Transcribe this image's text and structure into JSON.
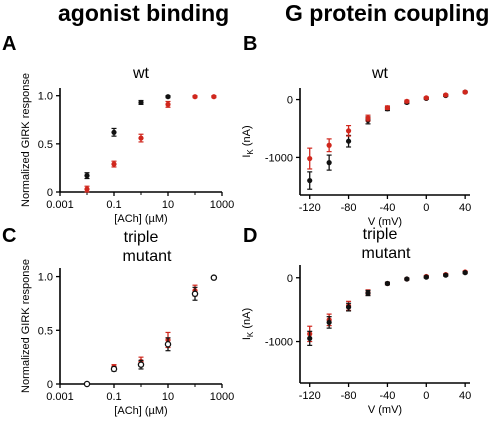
{
  "headings": {
    "left": "agonist binding",
    "right": "G protein coupling"
  },
  "colors": {
    "wt_black": "#111111",
    "mutant_red": "#d0271d",
    "axis": "#000000"
  },
  "chart_data": [
    {
      "panel": "A",
      "type": "scatter",
      "title": "wt",
      "xlabel": "[ACh] (µM)",
      "ylabel": "Normalized GIRK response",
      "xscale": "log",
      "xlim": [
        0.001,
        1000
      ],
      "ylim": [
        0,
        1.08
      ],
      "xticks": [
        {
          "v": 0.001,
          "label": "0.001"
        },
        {
          "v": 0.1,
          "label": "0.1"
        },
        {
          "v": 10,
          "label": "10"
        },
        {
          "v": 1000,
          "label": "1000"
        }
      ],
      "yticks": [
        {
          "v": 0,
          "label": "0"
        },
        {
          "v": 0.5,
          "label": "0.5"
        },
        {
          "v": 1,
          "label": "1.0"
        }
      ],
      "series": [
        {
          "color": "#111111",
          "x": [
            0.01,
            0.1,
            1,
            10
          ],
          "y": [
            0.17,
            0.62,
            0.93,
            0.99
          ],
          "err": [
            0.03,
            0.04,
            0.02,
            0.01
          ]
        },
        {
          "color": "#d0271d",
          "x": [
            0.01,
            0.1,
            1,
            10,
            100,
            500
          ],
          "y": [
            0.03,
            0.29,
            0.56,
            0.91,
            0.99,
            0.99
          ],
          "err": [
            0.03,
            0.03,
            0.04,
            0.03,
            0.01,
            0.01
          ]
        }
      ]
    },
    {
      "panel": "B",
      "type": "scatter",
      "title": "wt",
      "xlabel": "V (mV)",
      "ylabel": "I",
      "ylabel_sub": "K",
      "ylabel_unit": " (nA)",
      "xlim": [
        -130,
        45
      ],
      "ylim": [
        -1650,
        200
      ],
      "xticks": [
        {
          "v": -120,
          "label": "-120"
        },
        {
          "v": -80,
          "label": "-80"
        },
        {
          "v": -40,
          "label": "-40"
        },
        {
          "v": 0,
          "label": "0"
        },
        {
          "v": 40,
          "label": "40"
        }
      ],
      "yticks": [
        {
          "v": -1000,
          "label": "-1000"
        },
        {
          "v": 0,
          "label": "0"
        }
      ],
      "series": [
        {
          "color": "#111111",
          "x": [
            -120,
            -100,
            -80,
            -60,
            -40,
            -20,
            0,
            20,
            40
          ],
          "y": [
            -1400,
            -1090,
            -720,
            -360,
            -160,
            -50,
            20,
            70,
            130
          ],
          "err": [
            150,
            130,
            100,
            60,
            30,
            20,
            15,
            15,
            15
          ]
        },
        {
          "color": "#d0271d",
          "x": [
            -120,
            -100,
            -80,
            -60,
            -40,
            -20,
            0,
            20,
            40
          ],
          "y": [
            -1020,
            -790,
            -540,
            -320,
            -140,
            -30,
            30,
            80,
            130
          ],
          "err": [
            180,
            110,
            90,
            50,
            30,
            20,
            15,
            15,
            15
          ]
        }
      ]
    },
    {
      "panel": "C",
      "type": "scatter",
      "title": "triple mutant",
      "title_lines": [
        "triple",
        "mutant"
      ],
      "xlabel": "[ACh] (µM)",
      "ylabel": "Normalized GIRK response",
      "xscale": "log",
      "xlim": [
        0.001,
        1000
      ],
      "ylim": [
        0,
        1.08
      ],
      "xticks": [
        {
          "v": 0.001,
          "label": "0.001"
        },
        {
          "v": 0.1,
          "label": "0.1"
        },
        {
          "v": 10,
          "label": "10"
        },
        {
          "v": 1000,
          "label": "1000"
        }
      ],
      "yticks": [
        {
          "v": 0,
          "label": "0"
        },
        {
          "v": 0.5,
          "label": "0.5"
        },
        {
          "v": 1,
          "label": "1.0"
        }
      ],
      "series": [
        {
          "color": "#d0271d",
          "open": false,
          "x": [
            0.1,
            1,
            10,
            100
          ],
          "y": [
            0.16,
            0.21,
            0.41,
            0.87
          ],
          "err": [
            0.02,
            0.04,
            0.07,
            0.05
          ]
        },
        {
          "color": "#111111",
          "open": true,
          "x": [
            0.01,
            0.1,
            1,
            10,
            100,
            500
          ],
          "y": [
            0.0,
            0.14,
            0.18,
            0.37,
            0.84,
            0.99
          ],
          "err": [
            0.01,
            0.02,
            0.04,
            0.06,
            0.06,
            0.01
          ]
        }
      ]
    },
    {
      "panel": "D",
      "type": "scatter",
      "title": "triple mutant",
      "title_lines": [
        "triple",
        "mutant"
      ],
      "xlabel": "V (mV)",
      "ylabel": "I",
      "ylabel_sub": "K",
      "ylabel_unit": " (nA)",
      "xlim": [
        -130,
        45
      ],
      "ylim": [
        -1650,
        200
      ],
      "xticks": [
        {
          "v": -120,
          "label": "-120"
        },
        {
          "v": -80,
          "label": "-80"
        },
        {
          "v": -40,
          "label": "-40"
        },
        {
          "v": 0,
          "label": "0"
        },
        {
          "v": 40,
          "label": "40"
        }
      ],
      "yticks": [
        {
          "v": -1000,
          "label": "-1000"
        },
        {
          "v": 0,
          "label": "0"
        }
      ],
      "series": [
        {
          "color": "#d0271d",
          "x": [
            -120,
            -100,
            -80,
            -60,
            -40,
            -20,
            0,
            20,
            40
          ],
          "y": [
            -880,
            -660,
            -440,
            -230,
            -90,
            -20,
            20,
            50,
            90
          ],
          "err": [
            120,
            90,
            70,
            40,
            20,
            15,
            15,
            15,
            15
          ]
        },
        {
          "color": "#111111",
          "x": [
            -120,
            -100,
            -80,
            -60,
            -40,
            -20,
            0,
            20,
            40
          ],
          "y": [
            -950,
            -700,
            -460,
            -240,
            -90,
            -20,
            10,
            40,
            80
          ],
          "err": [
            110,
            90,
            60,
            40,
            20,
            15,
            15,
            15,
            15
          ]
        }
      ]
    }
  ]
}
